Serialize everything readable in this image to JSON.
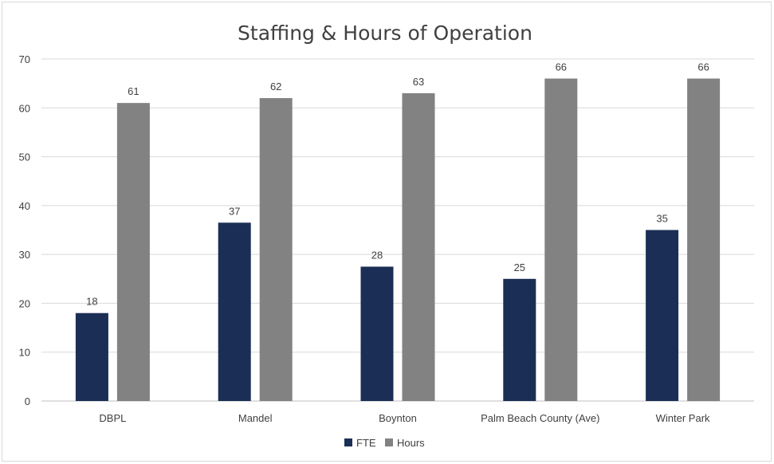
{
  "chart_data": {
    "type": "bar",
    "title": "Staffing & Hours of Operation",
    "xlabel": "",
    "ylabel": "",
    "ylim": [
      0,
      70
    ],
    "yticks": [
      0,
      10,
      20,
      30,
      40,
      50,
      60,
      70
    ],
    "grid": true,
    "legend": "bottom",
    "categories": [
      "DBPL",
      "Mandel",
      "Boynton",
      "Palm Beach County (Ave)",
      "Winter Park"
    ],
    "series": [
      {
        "name": "FTE",
        "color": "#1b2e55",
        "values": [
          18,
          36.5,
          27.5,
          25,
          35
        ],
        "labels": [
          "18",
          "37",
          "28",
          "25",
          "35"
        ]
      },
      {
        "name": "Hours",
        "color": "#828282",
        "values": [
          61,
          62,
          63,
          66,
          66
        ],
        "labels": [
          "61",
          "62",
          "63",
          "66",
          "66"
        ]
      }
    ]
  }
}
